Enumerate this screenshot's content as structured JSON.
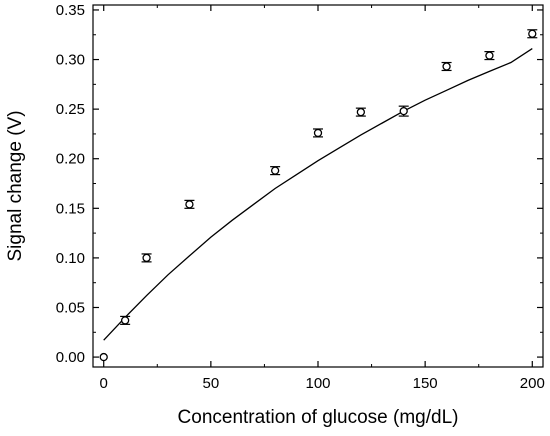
{
  "chart_data": {
    "type": "scatter",
    "xlabel": "Concentration of glucose (mg/dL)",
    "ylabel": "Signal change (V)",
    "xlim": [
      -5,
      205
    ],
    "ylim": [
      -0.01,
      0.355
    ],
    "x_ticks": [
      0,
      50,
      100,
      150,
      200
    ],
    "x_tick_labels": [
      "0",
      "50",
      "100",
      "150",
      "200"
    ],
    "y_ticks": [
      0.0,
      0.05,
      0.1,
      0.15,
      0.2,
      0.25,
      0.3,
      0.35
    ],
    "y_tick_labels": [
      "0.00",
      "0.05",
      "0.10",
      "0.15",
      "0.20",
      "0.25",
      "0.30",
      "0.35"
    ],
    "grid": false,
    "series": [
      {
        "marker": "open-circle",
        "x": [
          0,
          10,
          20,
          40,
          80,
          100,
          120,
          140,
          160,
          180,
          200
        ],
        "y": [
          0.0,
          0.037,
          0.1,
          0.154,
          0.188,
          0.226,
          0.247,
          0.248,
          0.293,
          0.304,
          0.326
        ],
        "error": [
          0,
          0.004,
          0.004,
          0.004,
          0.004,
          0.004,
          0.004,
          0.005,
          0.004,
          0.004,
          0.004
        ]
      },
      {
        "type": "line",
        "style": "solid",
        "x": [
          0,
          10,
          20,
          30,
          40,
          50,
          60,
          70,
          80,
          90,
          100,
          110,
          120,
          130,
          140,
          150,
          160,
          170,
          180,
          190,
          200
        ],
        "y": [
          0.017,
          0.04,
          0.062,
          0.083,
          0.102,
          0.121,
          0.138,
          0.154,
          0.17,
          0.184,
          0.198,
          0.211,
          0.224,
          0.236,
          0.248,
          0.259,
          0.269,
          0.279,
          0.288,
          0.297,
          0.311
        ]
      }
    ],
    "colors": {
      "axis": "#000000",
      "marker": "#000000",
      "line": "#000000",
      "background": "#ffffff"
    }
  }
}
